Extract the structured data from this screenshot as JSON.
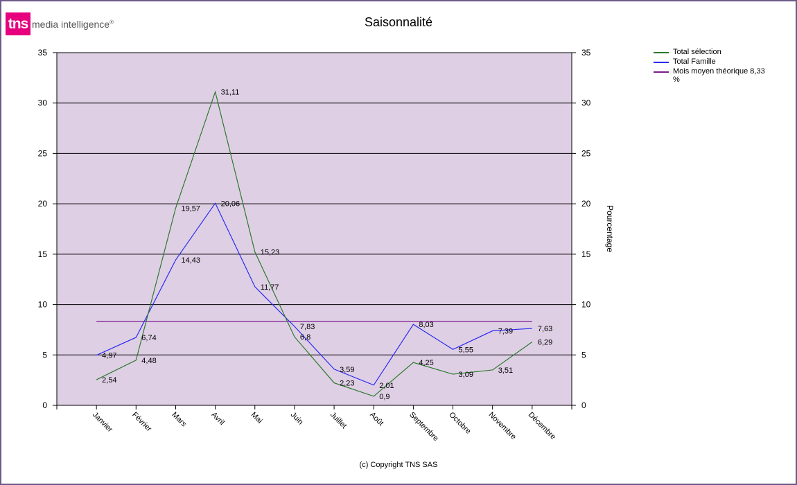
{
  "logo": {
    "mark": "tns",
    "text": "media intelligence",
    "sup": "®"
  },
  "copyright": "(c) Copyright TNS SAS",
  "colors": {
    "plot_bg": "#dfcfe5",
    "selection": "#2b7a2b",
    "famille": "#2a2aef",
    "moyen": "#7b1a8b",
    "brand": "#e6007e"
  },
  "chart_data": {
    "type": "line",
    "title": "Saisonnalité",
    "ylabel_right": "Pourcentage",
    "xlabel": "",
    "ylim": [
      0,
      35
    ],
    "yticks": [
      0,
      5,
      10,
      15,
      20,
      25,
      30,
      35
    ],
    "grid": true,
    "legend_position": "top-right",
    "categories": [
      "Janvier",
      "Février",
      "Mars",
      "Avril",
      "Mai",
      "Juin",
      "Juillet",
      "Août",
      "Septembre",
      "Octobre",
      "Novembre",
      "Décembre"
    ],
    "series": [
      {
        "name": "Total sélection",
        "color": "#2b7a2b",
        "values": [
          2.54,
          4.48,
          19.57,
          31.11,
          15.23,
          6.8,
          2.23,
          0.9,
          4.25,
          3.09,
          3.51,
          6.29
        ],
        "labels": [
          "2,54",
          "4,48",
          "19,57",
          "31,11",
          "15,23",
          "6,8",
          "2,23",
          "0,9",
          "4,25",
          "3,09",
          "3,51",
          "6,29"
        ]
      },
      {
        "name": "Total Famille",
        "color": "#2a2aef",
        "values": [
          4.97,
          6.74,
          14.43,
          20.06,
          11.77,
          7.83,
          3.59,
          2.01,
          8.03,
          5.55,
          7.39,
          7.63
        ],
        "labels": [
          "4,97",
          "6,74",
          "14,43",
          "20,06",
          "11,77",
          "7,83",
          "3,59",
          "2,01",
          "8,03",
          "5,55",
          "7,39",
          "7,63"
        ]
      },
      {
        "name": "Mois moyen théorique 8,33 %",
        "color": "#7b1a8b",
        "values": [
          8.33,
          8.33,
          8.33,
          8.33,
          8.33,
          8.33,
          8.33,
          8.33,
          8.33,
          8.33,
          8.33,
          8.33
        ],
        "labels": []
      }
    ]
  }
}
